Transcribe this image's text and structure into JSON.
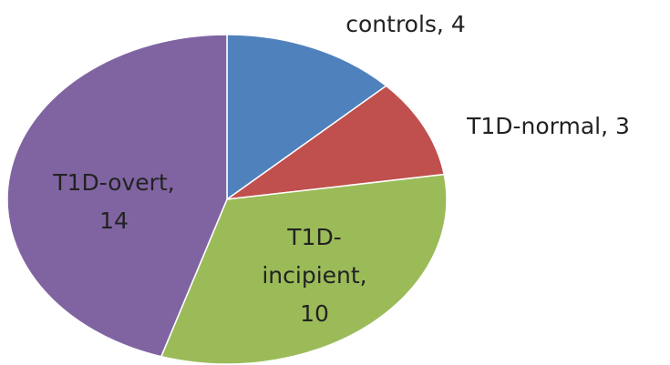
{
  "chart_data": {
    "type": "pie",
    "values": [
      4,
      3,
      10,
      14
    ],
    "value_labels": [
      "controls, 4",
      "T1D-normal, 3",
      "T1D-incipient, 10",
      "T1D-overt, 14"
    ],
    "colors": [
      "#4f81bd",
      "#c0504d",
      "#9bbb59",
      "#8064a2"
    ]
  }
}
